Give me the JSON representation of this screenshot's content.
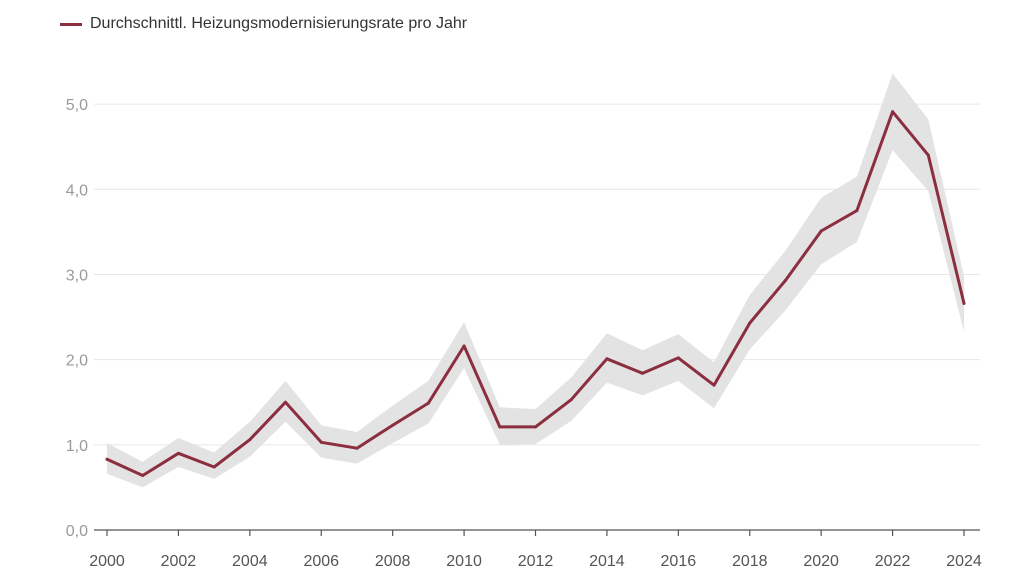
{
  "chart_data": {
    "type": "line",
    "legend_position": "top-left",
    "grid": true,
    "colors": {
      "line": "#8b2e3f",
      "band": "#e3e3e3",
      "grid": "#e6e6e6",
      "axis": "#555555"
    },
    "x": [
      2000,
      2001,
      2002,
      2003,
      2004,
      2005,
      2006,
      2007,
      2008,
      2009,
      2010,
      2011,
      2012,
      2013,
      2014,
      2015,
      2016,
      2017,
      2018,
      2019,
      2020,
      2021,
      2022,
      2023,
      2024
    ],
    "xticks": [
      "2000",
      "2002",
      "2004",
      "2006",
      "2008",
      "2010",
      "2012",
      "2014",
      "2016",
      "2018",
      "2020",
      "2022",
      "2024"
    ],
    "xlim": [
      2000,
      2024
    ],
    "ylim": [
      0,
      5.4
    ],
    "yticks": [
      "0,0",
      "1,0",
      "2,0",
      "3,0",
      "4,0",
      "5,0"
    ],
    "series": [
      {
        "name": "Durchschnittl. Heizungsmodernisierungsrate pro Jahr",
        "values": [
          0.83,
          0.64,
          0.9,
          0.74,
          1.06,
          1.5,
          1.03,
          0.96,
          1.23,
          1.49,
          2.16,
          1.21,
          1.21,
          1.53,
          2.01,
          1.84,
          2.02,
          1.7,
          2.43,
          2.93,
          3.51,
          3.75,
          4.91,
          4.4,
          2.66
        ],
        "lower": [
          0.66,
          0.5,
          0.74,
          0.6,
          0.86,
          1.27,
          0.85,
          0.78,
          1.02,
          1.25,
          1.9,
          1.0,
          1.01,
          1.28,
          1.73,
          1.58,
          1.75,
          1.43,
          2.12,
          2.58,
          3.12,
          3.38,
          4.46,
          3.98,
          2.33
        ],
        "upper": [
          1.02,
          0.8,
          1.08,
          0.91,
          1.27,
          1.75,
          1.23,
          1.15,
          1.46,
          1.75,
          2.44,
          1.44,
          1.42,
          1.79,
          2.31,
          2.11,
          2.3,
          1.97,
          2.76,
          3.28,
          3.9,
          4.15,
          5.36,
          4.82,
          2.98
        ]
      }
    ]
  }
}
